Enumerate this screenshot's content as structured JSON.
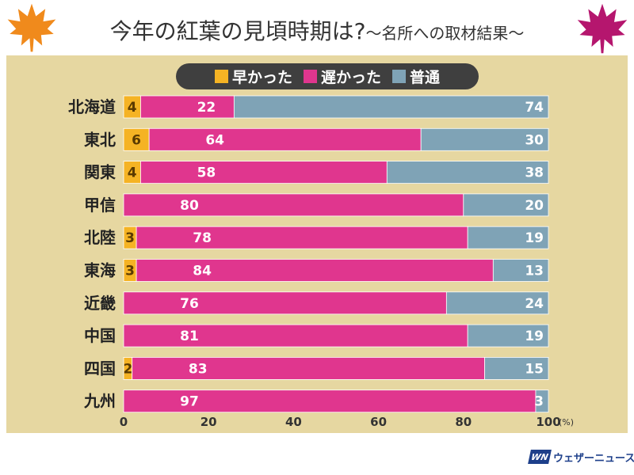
{
  "header": {
    "title": "今年の紅葉の見頃時期は?",
    "subtitle": "〜名所への取材結果〜"
  },
  "decor": {
    "left_leaf": "maple-leaf-icon",
    "right_leaf": "maple-leaf-icon",
    "left_leaf_color": "#f08a1c",
    "right_leaf_color": "#b5166e"
  },
  "branding": {
    "logo_mark": "WN",
    "logo_text": "ウェザーニュース"
  },
  "chart_data": {
    "type": "bar",
    "orientation": "horizontal",
    "stacked": true,
    "title": "",
    "xlabel": "",
    "ylabel": "",
    "xlim": [
      0,
      100
    ],
    "x_ticks": [
      "0",
      "20",
      "40",
      "60",
      "80",
      "100"
    ],
    "x_unit": "(%)",
    "legend_position": "top",
    "categories": [
      "北海道",
      "東北",
      "関東",
      "甲信",
      "北陸",
      "東海",
      "近畿",
      "中国",
      "四国",
      "九州"
    ],
    "series": [
      {
        "name": "早かった",
        "color": "#f5b324",
        "label_color": "#5a3a00",
        "values": [
          4,
          6,
          4,
          0,
          3,
          3,
          0,
          0,
          2,
          0
        ]
      },
      {
        "name": "遅かった",
        "color": "#e0368e",
        "label_color": "#ffffff",
        "values": [
          22,
          64,
          58,
          80,
          78,
          84,
          76,
          81,
          83,
          97
        ]
      },
      {
        "name": "普通",
        "color": "#7fa3b6",
        "label_color": "#ffffff",
        "values": [
          74,
          30,
          38,
          20,
          19,
          13,
          24,
          19,
          15,
          3
        ]
      }
    ]
  }
}
